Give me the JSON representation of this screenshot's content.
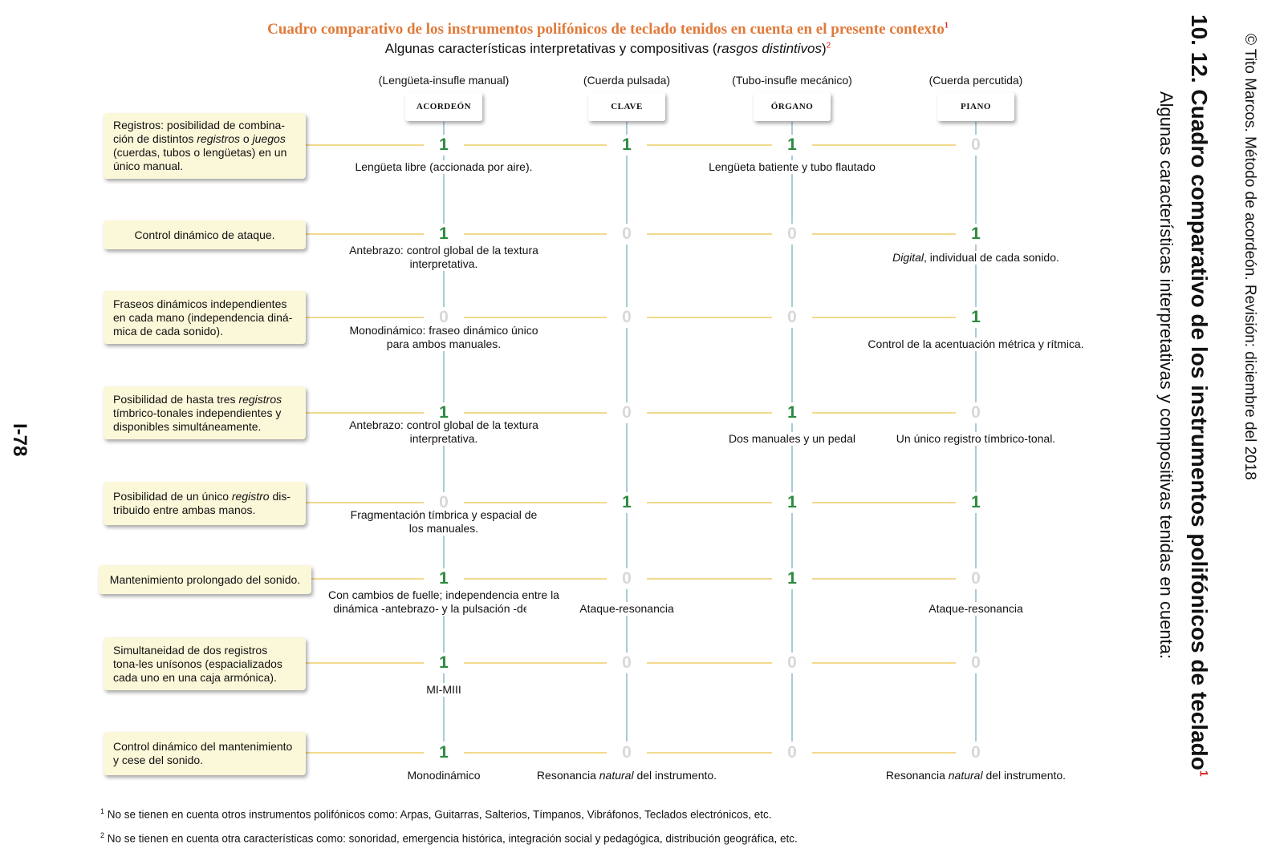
{
  "header": {
    "title": "Cuadro comparativo de los instrumentos polifónicos de teclado tenidos en cuenta en el presente contexto",
    "title_sup": "1",
    "subtitle_pre": "Algunas características interpretativas y compositivas (",
    "subtitle_em": "rasgos distintivos",
    "subtitle_post": ")",
    "subtitle_sup": "2"
  },
  "side": {
    "heading": "10. 12. Cuadro comparativo de los instrumentos polifónicos de teclado",
    "heading_sup": "1",
    "subheading": "Algunas características interpretativas y compositivas tenidas en cuenta:",
    "copyright": "© Tito Marcos. Método de acordeón. Revisión: diciembre del 2018",
    "page_number": "I-78"
  },
  "instruments": [
    {
      "type": "(Lengüeta-insufle manual)",
      "name": "ACORDEÓN"
    },
    {
      "type": "(Cuerda pulsada)",
      "name": "CLAVE"
    },
    {
      "type": "(Tubo-insufle mecánico)",
      "name": "ÓRGANO"
    },
    {
      "type": "(Cuerda percutida)",
      "name": "PIANO"
    }
  ],
  "rows": [
    {
      "parts": [
        [
          "Registros: posibilidad de combina-ción de distintos ",
          0
        ],
        [
          "registros",
          1
        ],
        [
          " o ",
          0
        ],
        [
          "juegos",
          1
        ],
        [
          " (cuerdas, tubos o lengüetas) en un único manual.",
          0
        ]
      ],
      "values": [
        "1",
        "1",
        "1",
        "0"
      ],
      "notes": [
        {
          "col": 0,
          "parts": [
            [
              "Lengüeta libre (accionada por aire).",
              0
            ]
          ]
        },
        {
          "col": 2,
          "parts": [
            [
              "Lengüeta batiente y tubo flautado",
              0
            ]
          ]
        }
      ]
    },
    {
      "parts": [
        [
          "Control dinámico de ataque.",
          0
        ]
      ],
      "values": [
        "1",
        "0",
        "0",
        "1"
      ],
      "notes": [
        {
          "col": 0,
          "parts": [
            [
              "Antebrazo: control global de la textura interpretativa.",
              0
            ]
          ]
        },
        {
          "col": 3,
          "parts": [
            [
              "Digital",
              1
            ],
            [
              ", individual de cada sonido.",
              0
            ]
          ]
        }
      ]
    },
    {
      "parts": [
        [
          "Fraseos dinámicos independientes en cada mano (independencia diná-mica de cada sonido).",
          0
        ]
      ],
      "values": [
        "0",
        "0",
        "0",
        "1"
      ],
      "notes": [
        {
          "col": 0,
          "parts": [
            [
              "Monodinámico: fraseo dinámico único para ambos manuales.",
              0
            ]
          ]
        },
        {
          "col": 3,
          "parts": [
            [
              "Control de la acentuación métrica y rítmica.",
              0
            ]
          ]
        }
      ]
    },
    {
      "parts": [
        [
          "Posibilidad de hasta tres ",
          0
        ],
        [
          "registros",
          1
        ],
        [
          " tímbrico-tonales independientes y disponibles simultáneamente.",
          0
        ]
      ],
      "values": [
        "1",
        "0",
        "1",
        "0"
      ],
      "notes": [
        {
          "col": 0,
          "parts": [
            [
              "Antebrazo: control global de la textura interpretativa.",
              0
            ]
          ]
        },
        {
          "col": 2,
          "parts": [
            [
              "Dos manuales y un pedal",
              0
            ]
          ]
        },
        {
          "col": 3,
          "parts": [
            [
              "Un único registro tímbrico-tonal.",
              0
            ]
          ]
        }
      ]
    },
    {
      "parts": [
        [
          "Posibilidad de un único ",
          0
        ],
        [
          "registro",
          1
        ],
        [
          " dis-tribuido entre ambas manos.",
          0
        ]
      ],
      "values": [
        "0",
        "1",
        "1",
        "1"
      ],
      "notes": [
        {
          "col": 0,
          "parts": [
            [
              "Fragmentación tímbrica y espacial de los manuales.",
              0
            ]
          ]
        }
      ]
    },
    {
      "parts": [
        [
          "Mantenimiento prolongado del sonido.",
          0
        ]
      ],
      "values": [
        "1",
        "0",
        "1",
        "0"
      ],
      "notes": [
        {
          "col": 0,
          "parts": [
            [
              "Con cambios de fuelle; independencia entre la dinámica -antebrazo- y la pulsación -dedos-.",
              0
            ]
          ]
        },
        {
          "col": 1,
          "parts": [
            [
              "Ataque-resonancia",
              0
            ]
          ]
        },
        {
          "col": 3,
          "parts": [
            [
              "Ataque-resonancia",
              0
            ]
          ]
        }
      ]
    },
    {
      "parts": [
        [
          "Simultaneidad de dos registros tona-les unísonos (espacializados cada uno en una caja armónica).",
          0
        ]
      ],
      "values": [
        "1",
        "0",
        "0",
        "0"
      ],
      "notes": [
        {
          "col": 0,
          "parts": [
            [
              "MI-MIII",
              0
            ]
          ]
        }
      ]
    },
    {
      "parts": [
        [
          "Control dinámico del mantenimiento y cese del sonido.",
          0
        ]
      ],
      "values": [
        "1",
        "0",
        "0",
        "0"
      ],
      "notes": [
        {
          "col": 0,
          "parts": [
            [
              "Monodinámico",
              0
            ]
          ]
        },
        {
          "col": 1,
          "parts": [
            [
              "Resonancia ",
              0
            ],
            [
              "natural",
              1
            ],
            [
              " del instrumento.",
              0
            ]
          ]
        },
        {
          "col": 3,
          "parts": [
            [
              "Resonancia ",
              0
            ],
            [
              "natural",
              1
            ],
            [
              " del instrumento.",
              0
            ]
          ]
        }
      ]
    }
  ],
  "footnotes": [
    {
      "sup": "1",
      "text": "No se tienen en cuenta otros instrumentos polifónicos como: Arpas, Guitarras, Salterios, Tímpanos, Vibráfonos, Teclados electrónicos, etc."
    },
    {
      "sup": "2",
      "text": "No se tienen en cuenta otra características como: sonoridad, emergencia histórica, integración social y pedagógica, distribución geográfica, etc."
    }
  ],
  "colors": {
    "value_one": "#2b8a3e",
    "value_zero": "#d8d8d8",
    "title": "#e07a3a",
    "condition_bg": "#fbf7d9",
    "connector": "#f2d98c",
    "column_line": "#a9ccd8"
  }
}
